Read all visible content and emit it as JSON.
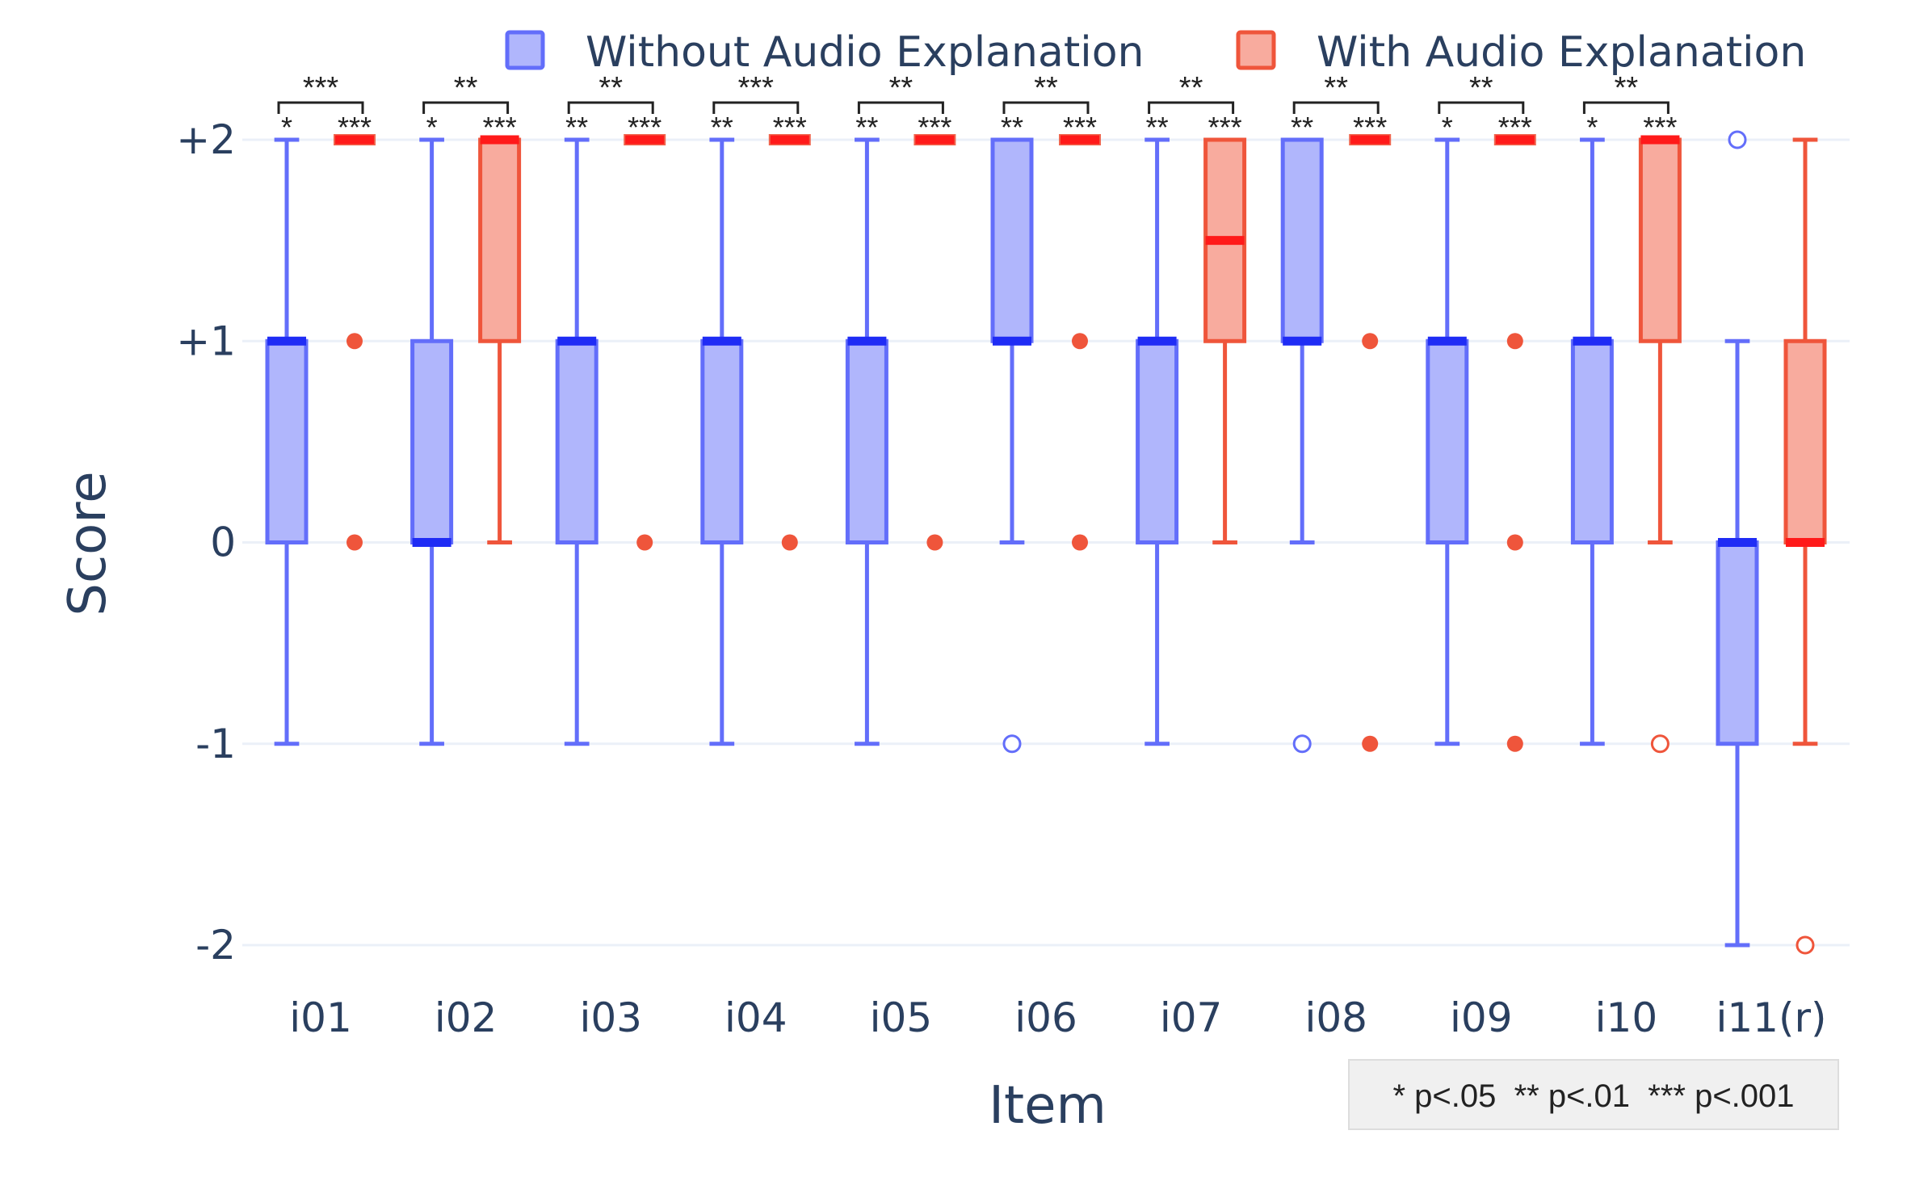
{
  "chart_data": {
    "type": "box",
    "xlabel": "Item",
    "ylabel": "Score",
    "ylim": [
      -2.2,
      2.3
    ],
    "y_ticks": [
      2,
      1,
      0,
      -1,
      -2
    ],
    "y_tick_labels": [
      "+2",
      "+1",
      "0",
      "-1",
      "-2"
    ],
    "categories": [
      "i01",
      "i02",
      "i03",
      "i04",
      "i05",
      "i06",
      "i07",
      "i08",
      "i09",
      "i10",
      "i11(r)"
    ],
    "legend": [
      "Without Audio Explanation",
      "With Audio Explanation"
    ],
    "colors": {
      "without_line": "#636efa",
      "without_fill": "#b0b6fc",
      "without_median": "#1f2cf5",
      "with_line": "#ef553b",
      "with_fill": "#f8ab9e",
      "with_median": "#ff1a1a",
      "grid": "#ebf0f8",
      "text": "#2a3f5f"
    },
    "series": [
      {
        "name": "Without Audio Explanation",
        "boxes": [
          {
            "q1": 0,
            "median": 1,
            "q3": 1,
            "lower": -1,
            "upper": 2,
            "outliers_open": [],
            "outliers_filled": []
          },
          {
            "q1": 0,
            "median": 0,
            "q3": 1,
            "lower": -1,
            "upper": 2,
            "outliers_open": [],
            "outliers_filled": []
          },
          {
            "q1": 0,
            "median": 1,
            "q3": 1,
            "lower": -1,
            "upper": 2,
            "outliers_open": [],
            "outliers_filled": []
          },
          {
            "q1": 0,
            "median": 1,
            "q3": 1,
            "lower": -1,
            "upper": 2,
            "outliers_open": [],
            "outliers_filled": []
          },
          {
            "q1": 0,
            "median": 1,
            "q3": 1,
            "lower": -1,
            "upper": 2,
            "outliers_open": [],
            "outliers_filled": []
          },
          {
            "q1": 1,
            "median": 1,
            "q3": 2,
            "lower": 0,
            "upper": 2,
            "outliers_open": [
              -1
            ],
            "outliers_filled": []
          },
          {
            "q1": 0,
            "median": 1,
            "q3": 1,
            "lower": -1,
            "upper": 2,
            "outliers_open": [],
            "outliers_filled": []
          },
          {
            "q1": 1,
            "median": 1,
            "q3": 2,
            "lower": 0,
            "upper": 2,
            "outliers_open": [
              -1
            ],
            "outliers_filled": []
          },
          {
            "q1": 0,
            "median": 1,
            "q3": 1,
            "lower": -1,
            "upper": 2,
            "outliers_open": [],
            "outliers_filled": []
          },
          {
            "q1": 0,
            "median": 1,
            "q3": 1,
            "lower": -1,
            "upper": 2,
            "outliers_open": [],
            "outliers_filled": []
          },
          {
            "q1": -1,
            "median": 0,
            "q3": 0,
            "lower": -2,
            "upper": 1,
            "outliers_open": [
              2
            ],
            "outliers_filled": []
          }
        ]
      },
      {
        "name": "With Audio Explanation",
        "boxes": [
          {
            "q1": 2,
            "median": 2,
            "q3": 2,
            "lower": 2,
            "upper": 2,
            "outliers_open": [],
            "outliers_filled": [
              1,
              0
            ]
          },
          {
            "q1": 1,
            "median": 2,
            "q3": 2,
            "lower": 0,
            "upper": 2,
            "outliers_open": [],
            "outliers_filled": []
          },
          {
            "q1": 2,
            "median": 2,
            "q3": 2,
            "lower": 2,
            "upper": 2,
            "outliers_open": [],
            "outliers_filled": [
              0
            ]
          },
          {
            "q1": 2,
            "median": 2,
            "q3": 2,
            "lower": 2,
            "upper": 2,
            "outliers_open": [],
            "outliers_filled": [
              0
            ]
          },
          {
            "q1": 2,
            "median": 2,
            "q3": 2,
            "lower": 2,
            "upper": 2,
            "outliers_open": [],
            "outliers_filled": [
              0
            ]
          },
          {
            "q1": 2,
            "median": 2,
            "q3": 2,
            "lower": 2,
            "upper": 2,
            "outliers_open": [],
            "outliers_filled": [
              1,
              0
            ]
          },
          {
            "q1": 1,
            "median": 1.5,
            "q3": 2,
            "lower": 0,
            "upper": 2,
            "outliers_open": [],
            "outliers_filled": []
          },
          {
            "q1": 2,
            "median": 2,
            "q3": 2,
            "lower": 2,
            "upper": 2,
            "outliers_open": [],
            "outliers_filled": [
              1,
              -1
            ]
          },
          {
            "q1": 2,
            "median": 2,
            "q3": 2,
            "lower": 2,
            "upper": 2,
            "outliers_open": [],
            "outliers_filled": [
              1,
              0,
              -1
            ]
          },
          {
            "q1": 1,
            "median": 2,
            "q3": 2,
            "lower": 0,
            "upper": 2,
            "outliers_open": [
              -1
            ],
            "outliers_filled": []
          },
          {
            "q1": 0,
            "median": 0,
            "q3": 1,
            "lower": -1,
            "upper": 2,
            "outliers_open": [
              -2
            ],
            "outliers_filled": []
          }
        ]
      }
    ],
    "significance": [
      {
        "item": "i01",
        "without": "*",
        "with": "***",
        "between": "***"
      },
      {
        "item": "i02",
        "without": "*",
        "with": "***",
        "between": "**"
      },
      {
        "item": "i03",
        "without": "**",
        "with": "***",
        "between": "**"
      },
      {
        "item": "i04",
        "without": "**",
        "with": "***",
        "between": "***"
      },
      {
        "item": "i05",
        "without": "**",
        "with": "***",
        "between": "**"
      },
      {
        "item": "i06",
        "without": "**",
        "with": "***",
        "between": "**"
      },
      {
        "item": "i07",
        "without": "**",
        "with": "***",
        "between": "**"
      },
      {
        "item": "i08",
        "without": "**",
        "with": "***",
        "between": "**"
      },
      {
        "item": "i09",
        "without": "*",
        "with": "***",
        "between": "**"
      },
      {
        "item": "i10",
        "without": "*",
        "with": "***",
        "between": "**"
      },
      {
        "item": "i11(r)",
        "without": "",
        "with": "",
        "between": ""
      }
    ],
    "note": "* p<.05  ** p<.01  *** p<.001"
  }
}
